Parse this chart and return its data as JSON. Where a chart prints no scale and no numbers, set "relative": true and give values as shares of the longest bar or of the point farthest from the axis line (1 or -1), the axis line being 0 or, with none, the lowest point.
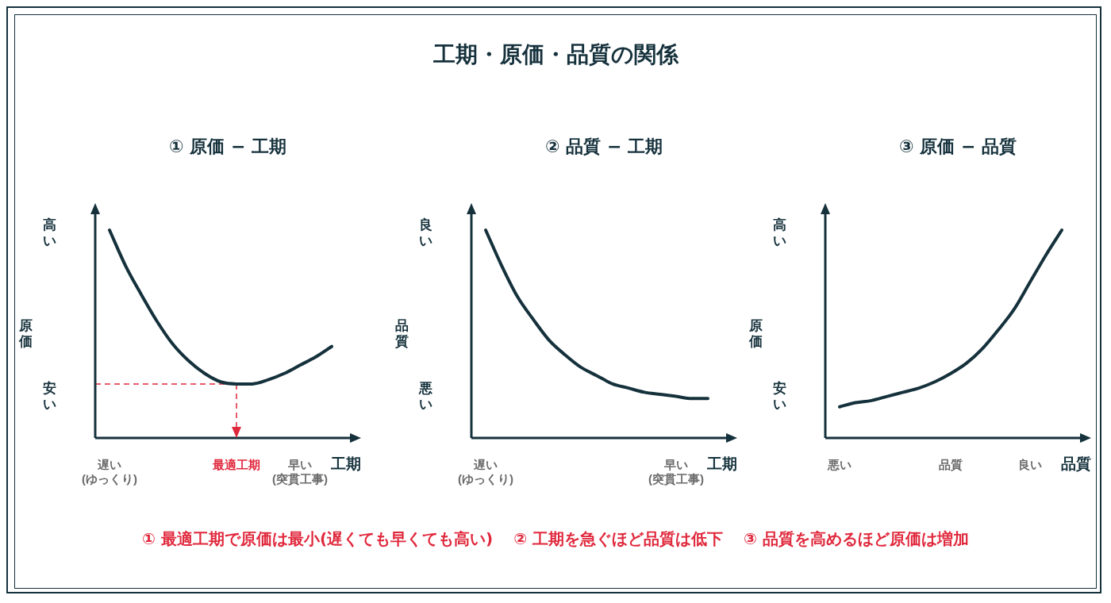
{
  "chart_data": [
    {
      "type": "other",
      "title": "工期・原価・品質の関係",
      "annotations": [
        "① 最適工期で原価は最小(遅くても早くても高い)",
        "② 工期を急ぐほど品質は低下",
        "③ 品質を高めるほど原価は増加"
      ]
    },
    {
      "type": "line",
      "title": "① 原価 − 工期",
      "xlabel": "工期",
      "ylabel": "原価",
      "relative": true,
      "marker": "none",
      "legend": false,
      "annotations": [
        "高い",
        "安い"
      ],
      "categories": [
        "遅い\n(ゆっくり)",
        null,
        null,
        null,
        null,
        null,
        null,
        null,
        "最適工期",
        null,
        null,
        null,
        "早い\n(突貫工事)",
        null,
        null
      ],
      "series": [
        {
          "color": "#15313c",
          "values": [
            1,
            0.83,
            0.69,
            0.56,
            0.45,
            0.37,
            0.31,
            0.27,
            0.26,
            0.26,
            0.28,
            0.31,
            0.35,
            0.39,
            0.44
          ]
        }
      ],
      "ref_lines": [
        {
          "axis": "y",
          "value": 0.26,
          "color": "#e0283c",
          "line_style": "dashed"
        },
        {
          "axis": "x",
          "value": "最適工期",
          "color": "#e0283c",
          "line_style": "dashed"
        }
      ]
    },
    {
      "type": "line",
      "title": "② 品質 − 工期",
      "xlabel": "工期",
      "ylabel": "品質",
      "relative": true,
      "marker": "none",
      "legend": false,
      "annotations": [
        "良い",
        "悪い"
      ],
      "categories": [
        "遅い\n(ゆっくり)",
        null,
        null,
        null,
        null,
        null,
        null,
        null,
        null,
        null,
        null,
        null,
        "早い\n(突貫工事)",
        null,
        null
      ],
      "series": [
        {
          "color": "#15313c",
          "values": [
            1,
            0.83,
            0.68,
            0.57,
            0.47,
            0.4,
            0.34,
            0.3,
            0.26,
            0.24,
            0.22,
            0.21,
            0.2,
            0.19,
            0.19
          ]
        }
      ]
    },
    {
      "type": "line",
      "title": "③ 原価 − 品質",
      "xlabel": "品質",
      "ylabel": "原価",
      "relative": true,
      "marker": "none",
      "legend": false,
      "annotations": [
        "高い",
        "安い"
      ],
      "categories": [
        "悪い",
        null,
        null,
        null,
        null,
        null,
        null,
        "品質",
        null,
        null,
        null,
        null,
        "良い",
        null,
        null
      ],
      "series": [
        {
          "color": "#15313c",
          "values": [
            0.15,
            0.17,
            0.18,
            0.2,
            0.22,
            0.24,
            0.27,
            0.31,
            0.36,
            0.43,
            0.52,
            0.62,
            0.75,
            0.88,
            1
          ]
        }
      ]
    }
  ]
}
